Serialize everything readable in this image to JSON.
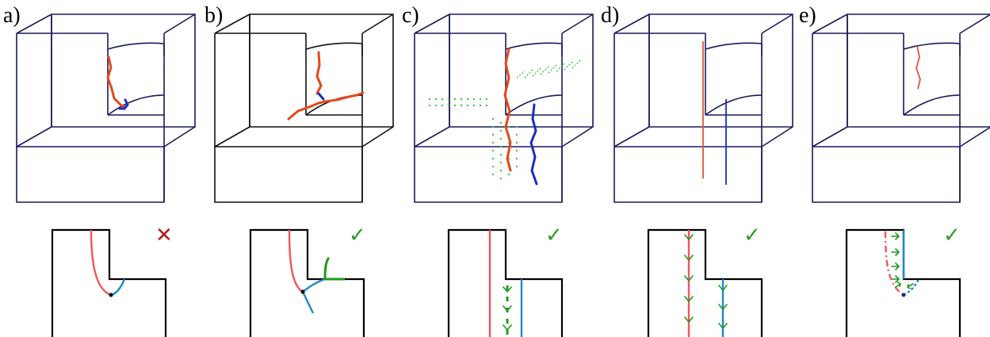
{
  "panels": [
    {
      "label": "a)",
      "status_mark": "✕",
      "status_color": "#b01c1c"
    },
    {
      "label": "b)",
      "status_mark": "✓",
      "status_color": "#2a9a2a"
    },
    {
      "label": "c)",
      "status_mark": "✓",
      "status_color": "#2a9a2a"
    },
    {
      "label": "d)",
      "status_mark": "✓",
      "status_color": "#2a9a2a"
    },
    {
      "label": "e)",
      "status_mark": "✓",
      "status_color": "#2a9a2a"
    }
  ],
  "colors": {
    "crack_red": "#e5481c",
    "crack_blue": "#1a2ec0",
    "field_green": "#1e9a1e",
    "curve_blue": "#1e88c8",
    "curve_red": "#f0555a"
  }
}
